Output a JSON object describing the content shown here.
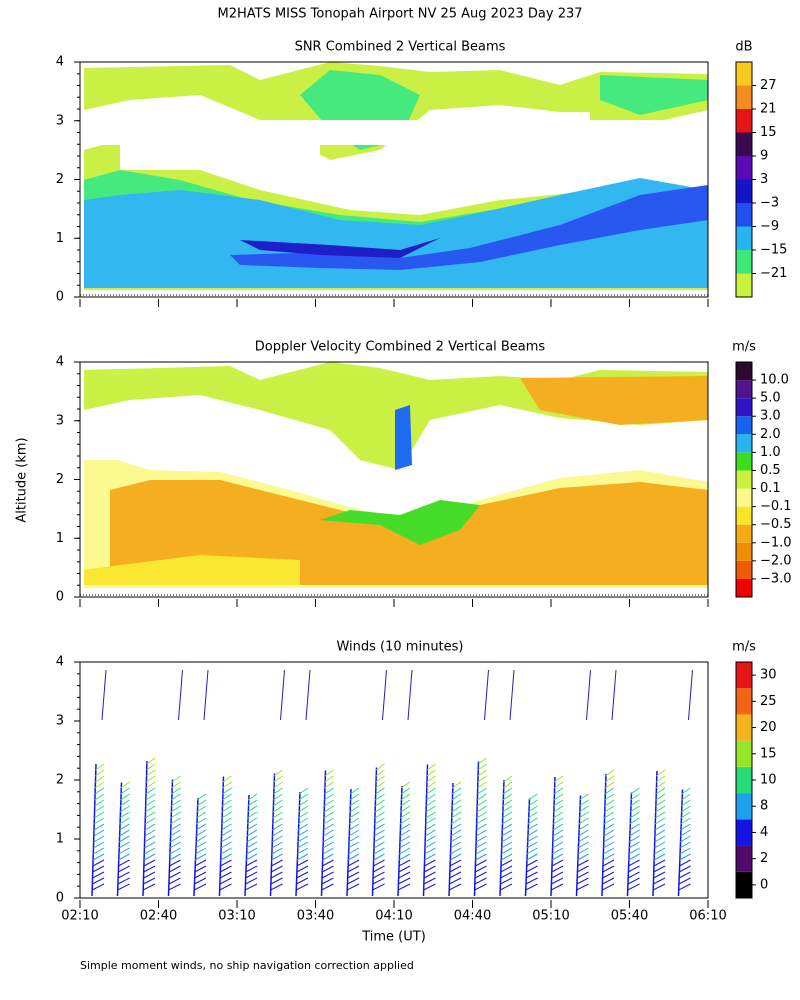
{
  "title": "M2HATS MISS Tonopah Airport NV  25 Aug 2023 Day 237",
  "y_label": "Altitude (km)",
  "footnote": "Simple moment winds, no ship navigation correction applied",
  "chart_data": [
    {
      "type": "heatmap",
      "title": "SNR Combined 2 Vertical Beams",
      "ylim": [
        0,
        4
      ],
      "yticks": [
        0,
        1,
        2,
        3,
        4
      ],
      "colorbar": {
        "unit": "dB",
        "labels": [
          -21,
          -15,
          -9,
          -3,
          3,
          9,
          15,
          21,
          27
        ],
        "colors": [
          "#c8f03c",
          "#3ce878",
          "#28b4f0",
          "#1e50f0",
          "#1414c8",
          "#5a0ab4",
          "#3c0a50",
          "#e61414",
          "#f58c1e",
          "#fac81e"
        ]
      }
    },
    {
      "type": "heatmap",
      "title": "Doppler Velocity Combined 2 Vertical Beams",
      "ylim": [
        0,
        4
      ],
      "yticks": [
        0,
        1,
        2,
        3,
        4
      ],
      "colorbar": {
        "unit": "m/s",
        "labels": [
          -3.0,
          -2.0,
          -1.0,
          -0.5,
          -0.1,
          0.1,
          0.5,
          1.0,
          2.0,
          3.0,
          5.0,
          {
            "value": 10,
            "label": "10.0"
          }
        ],
        "colors": [
          "#f00000",
          "#f05a00",
          "#f08c00",
          "#f5aa14",
          "#fae628",
          "#fafa8c",
          "#c8f03c",
          "#3cdc1e",
          "#28b4f0",
          "#1464f0",
          "#3214c8",
          "#50148c",
          "#2d0a2d"
        ]
      }
    },
    {
      "type": "wind-barbs",
      "title": "Winds (10 minutes)",
      "ylim": [
        0,
        4
      ],
      "yticks": [
        0,
        1,
        2,
        3,
        4
      ],
      "xticks": [
        "02:10",
        "02:40",
        "03:10",
        "03:40",
        "04:10",
        "04:40",
        "05:10",
        "05:40",
        "06:10"
      ],
      "xlabel": "Time (UT)",
      "colorbar": {
        "unit": "m/s",
        "labels": [
          0,
          2,
          4,
          8,
          10,
          15,
          20,
          25,
          30
        ],
        "colors": [
          "#000000",
          "#500a6e",
          "#1414e6",
          "#1ea0f0",
          "#28dc78",
          "#96e628",
          "#f5b41e",
          "#f56414",
          "#e61414"
        ]
      }
    }
  ]
}
